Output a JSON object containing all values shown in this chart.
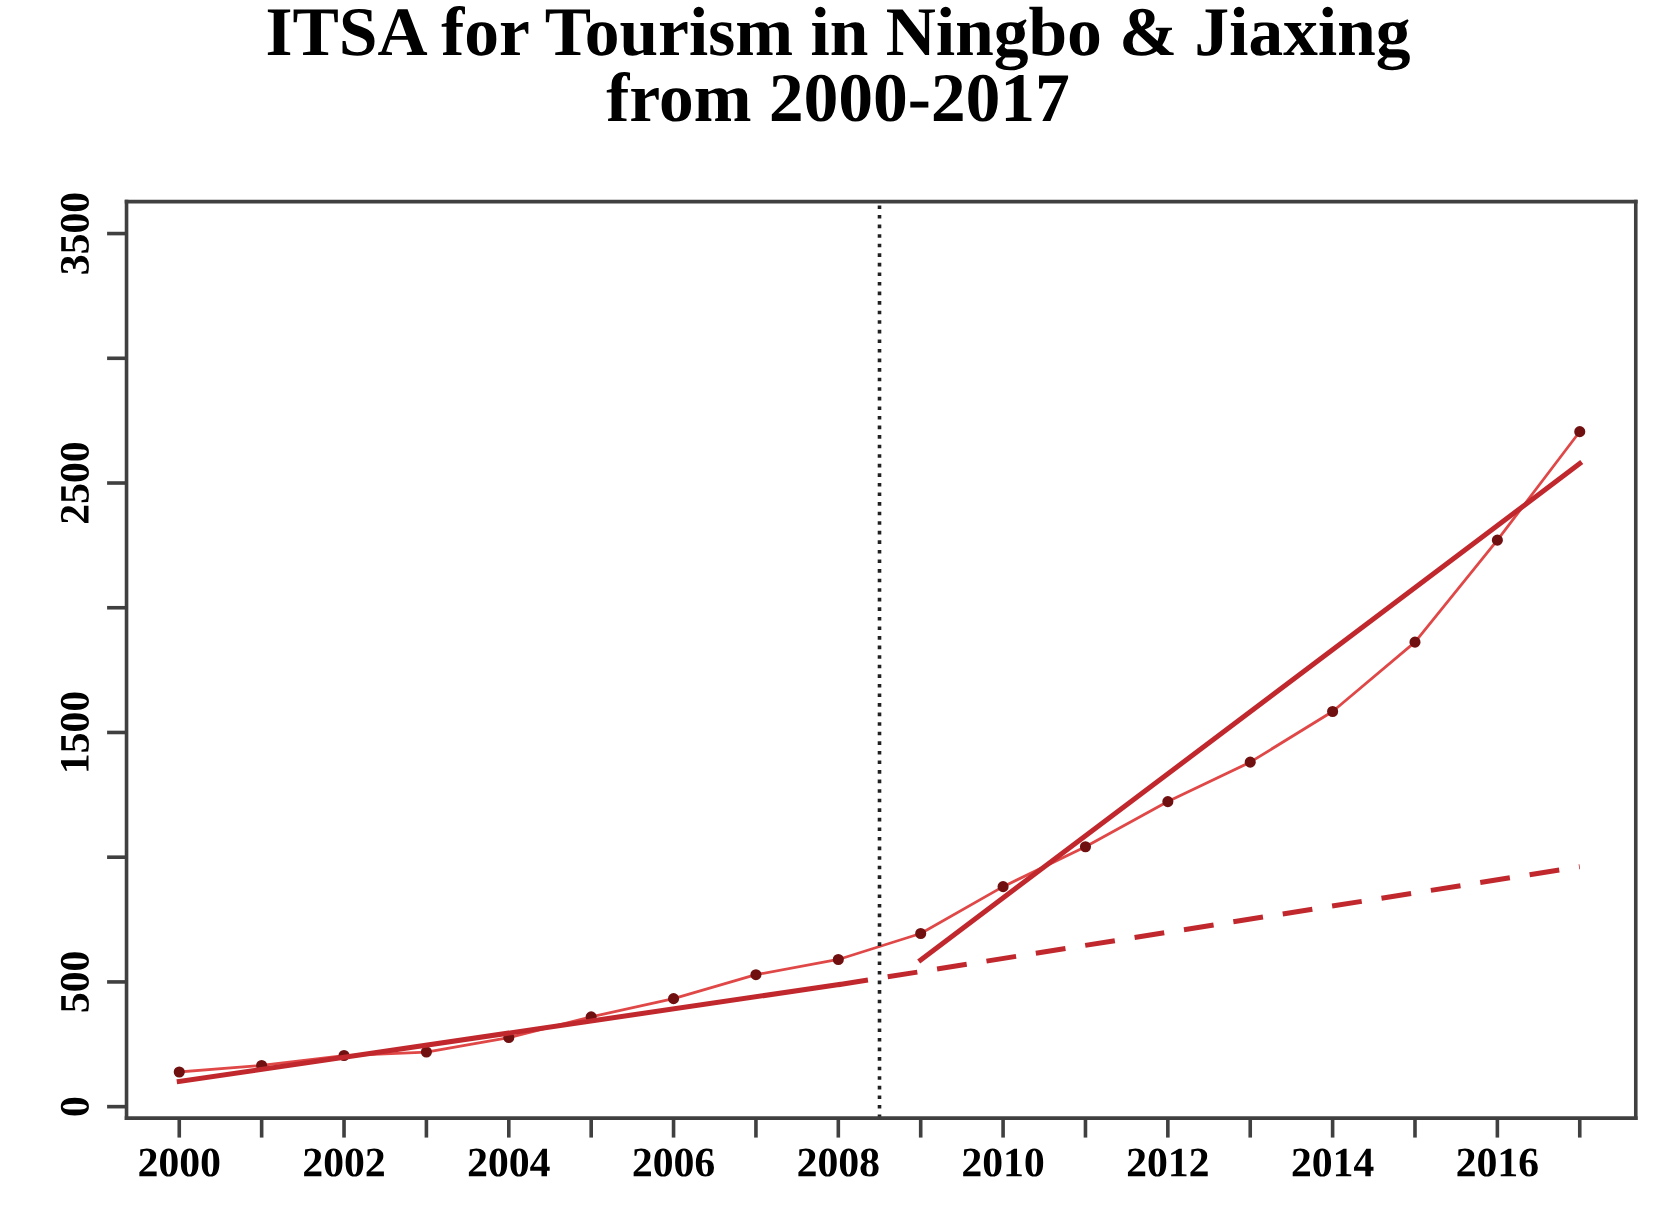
{
  "chart_data": {
    "type": "line",
    "title": "ITSA for Tourism in Ningbo & Jiaxing\nfrom 2000-2017",
    "x": [
      2000,
      2001,
      2002,
      2003,
      2004,
      2005,
      2006,
      2007,
      2008,
      2009,
      2010,
      2011,
      2012,
      2013,
      2014,
      2015,
      2016,
      2017
    ],
    "series": [
      {
        "color": "#e04848",
        "marker": "circle",
        "line_style": "solid",
        "values": [
          139,
          165,
          205,
          219,
          277,
          360,
          433,
          529,
          590,
          694,
          882,
          1042,
          1223,
          1381,
          1584,
          1862,
          2271,
          2706
        ]
      },
      {
        "color": "#c0282d",
        "marker": "none",
        "line_style": "solid",
        "x": [
          2000,
          2008
        ],
        "values": [
          101,
          489
        ]
      },
      {
        "color": "#c0282d",
        "marker": "none",
        "line_style": "dashed",
        "x": [
          2008,
          2017
        ],
        "values": [
          489,
          962
        ]
      },
      {
        "color": "#c0282d",
        "marker": "none",
        "line_style": "solid",
        "x": [
          2009,
          2017
        ],
        "values": [
          588,
          2578
        ]
      }
    ],
    "ref_lines": [
      {
        "axis": "x",
        "value": 2008.5,
        "line_style": "dotted",
        "color": "#202020"
      }
    ],
    "xlim": [
      1999.36,
      2017.68
    ],
    "xticks": [
      2000,
      {
        "value": 2001,
        "label": null
      },
      2002,
      {
        "value": 2003,
        "label": null
      },
      2004,
      {
        "value": 2005,
        "label": null
      },
      2006,
      {
        "value": 2007,
        "label": null
      },
      2008,
      {
        "value": 2009,
        "label": null
      },
      2010,
      {
        "value": 2011,
        "label": null
      },
      2012,
      {
        "value": 2013,
        "label": null
      },
      2014,
      {
        "value": 2015,
        "label": null
      },
      2016,
      {
        "value": 2017,
        "label": null
      }
    ],
    "ylim": [
      -46,
      3628
    ],
    "yticks": [
      0,
      500,
      {
        "value": 1000,
        "label": null
      },
      1500,
      {
        "value": 2000,
        "label": null
      },
      2500,
      {
        "value": 3000,
        "label": null
      },
      3500
    ],
    "grid": false
  }
}
